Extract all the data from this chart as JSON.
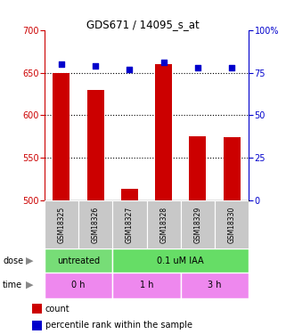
{
  "title": "GDS671 / 14095_s_at",
  "samples": [
    "GSM18325",
    "GSM18326",
    "GSM18327",
    "GSM18328",
    "GSM18329",
    "GSM18330"
  ],
  "counts": [
    650,
    630,
    514,
    660,
    575,
    574
  ],
  "percentiles": [
    80,
    79,
    77,
    81,
    78,
    78
  ],
  "ylim_left": [
    500,
    700
  ],
  "ylim_right": [
    0,
    100
  ],
  "yticks_left": [
    500,
    550,
    600,
    650,
    700
  ],
  "yticks_right": [
    0,
    25,
    50,
    75,
    100
  ],
  "bar_color": "#cc0000",
  "dot_color": "#0000cc",
  "bar_width": 0.5,
  "dose_untreated_color": "#77dd77",
  "dose_iaa_color": "#66dd66",
  "time_color": "#ee88ee",
  "dose_row_label": "dose",
  "time_row_label": "time",
  "legend_count_label": "count",
  "legend_pct_label": "percentile rank within the sample",
  "bg_color": "#ffffff",
  "left_axis_color": "#cc0000",
  "right_axis_color": "#0000cc",
  "grid_yticks": [
    550,
    600,
    650
  ]
}
